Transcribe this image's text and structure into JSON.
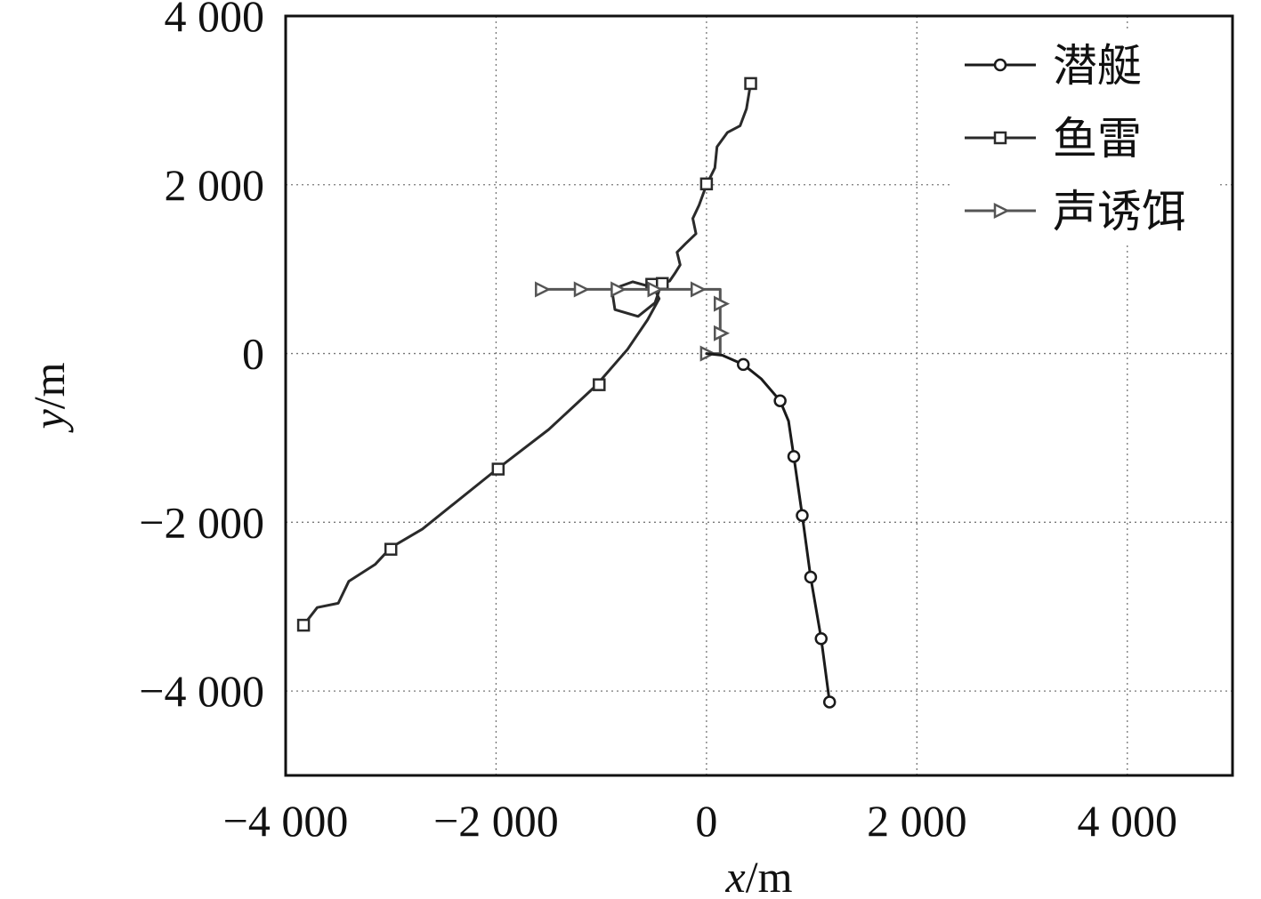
{
  "chart_data": {
    "type": "line",
    "xlabel": {
      "var": "x",
      "unit": "/m"
    },
    "ylabel": {
      "var": "y",
      "unit": "/m"
    },
    "xlim": [
      -4000,
      5000
    ],
    "ylim": [
      -5000,
      4000
    ],
    "xticks": [
      -4000,
      -2000,
      0,
      2000,
      4000
    ],
    "yticks": [
      -4000,
      -2000,
      0,
      2000,
      4000
    ],
    "xtick_labels": [
      "−4 000",
      "−2 000",
      "0",
      "2 000",
      "4 000"
    ],
    "ytick_labels": [
      "−4 000",
      "−2 000",
      "0",
      "2 000",
      "4 000"
    ],
    "grid": true,
    "legend_position": "top-right",
    "series": [
      {
        "name": "潜艇",
        "marker": "circle",
        "color": "#1a1a1a",
        "points": [
          [
            0,
            0
          ],
          [
            150,
            -20
          ],
          [
            350,
            -130
          ],
          [
            520,
            -300
          ],
          [
            700,
            -560
          ],
          [
            780,
            -800
          ],
          [
            830,
            -1220
          ],
          [
            910,
            -1920
          ],
          [
            990,
            -2650
          ],
          [
            1090,
            -3380
          ],
          [
            1170,
            -4130
          ]
        ],
        "marker_points": [
          [
            350,
            -130
          ],
          [
            700,
            -560
          ],
          [
            830,
            -1220
          ],
          [
            910,
            -1920
          ],
          [
            990,
            -2650
          ],
          [
            1090,
            -3380
          ],
          [
            1170,
            -4130
          ]
        ]
      },
      {
        "name": "鱼雷",
        "marker": "square",
        "color": "#2a2a2a",
        "points": [
          [
            -3830,
            -3220
          ],
          [
            -3700,
            -3010
          ],
          [
            -3500,
            -2960
          ],
          [
            -3400,
            -2700
          ],
          [
            -3150,
            -2500
          ],
          [
            -3000,
            -2300
          ],
          [
            -2700,
            -2080
          ],
          [
            -2000,
            -1380
          ],
          [
            -1500,
            -900
          ],
          [
            -1050,
            -380
          ],
          [
            -750,
            50
          ],
          [
            -560,
            400
          ],
          [
            -450,
            650
          ],
          [
            -500,
            780
          ],
          [
            -700,
            850
          ],
          [
            -900,
            760
          ],
          [
            -870,
            520
          ],
          [
            -650,
            440
          ],
          [
            -490,
            600
          ],
          [
            -430,
            820
          ],
          [
            -350,
            860
          ],
          [
            -300,
            950
          ],
          [
            -250,
            1050
          ],
          [
            -280,
            1200
          ],
          [
            -200,
            1300
          ],
          [
            -100,
            1420
          ],
          [
            -130,
            1600
          ],
          [
            -70,
            1760
          ],
          [
            0,
            2000
          ],
          [
            80,
            2200
          ],
          [
            100,
            2450
          ],
          [
            200,
            2620
          ],
          [
            320,
            2700
          ],
          [
            380,
            2900
          ],
          [
            420,
            3200
          ]
        ],
        "marker_points": [
          [
            -3830,
            -3220
          ],
          [
            -3000,
            -2320
          ],
          [
            -1980,
            -1370
          ],
          [
            -1020,
            -370
          ],
          [
            -520,
            820
          ],
          [
            -420,
            830
          ],
          [
            0,
            2010
          ],
          [
            420,
            3200
          ]
        ]
      },
      {
        "name": "声诱饵",
        "marker": "triangle-right",
        "color": "#555555",
        "points": [
          [
            -1570,
            760
          ],
          [
            130,
            760
          ],
          [
            130,
            0
          ],
          [
            0,
            0
          ]
        ],
        "marker_points": [
          [
            -1570,
            760
          ],
          [
            -1200,
            760
          ],
          [
            -850,
            760
          ],
          [
            -500,
            760
          ],
          [
            -90,
            760
          ],
          [
            130,
            590
          ],
          [
            130,
            240
          ],
          [
            0,
            0
          ]
        ]
      }
    ]
  }
}
